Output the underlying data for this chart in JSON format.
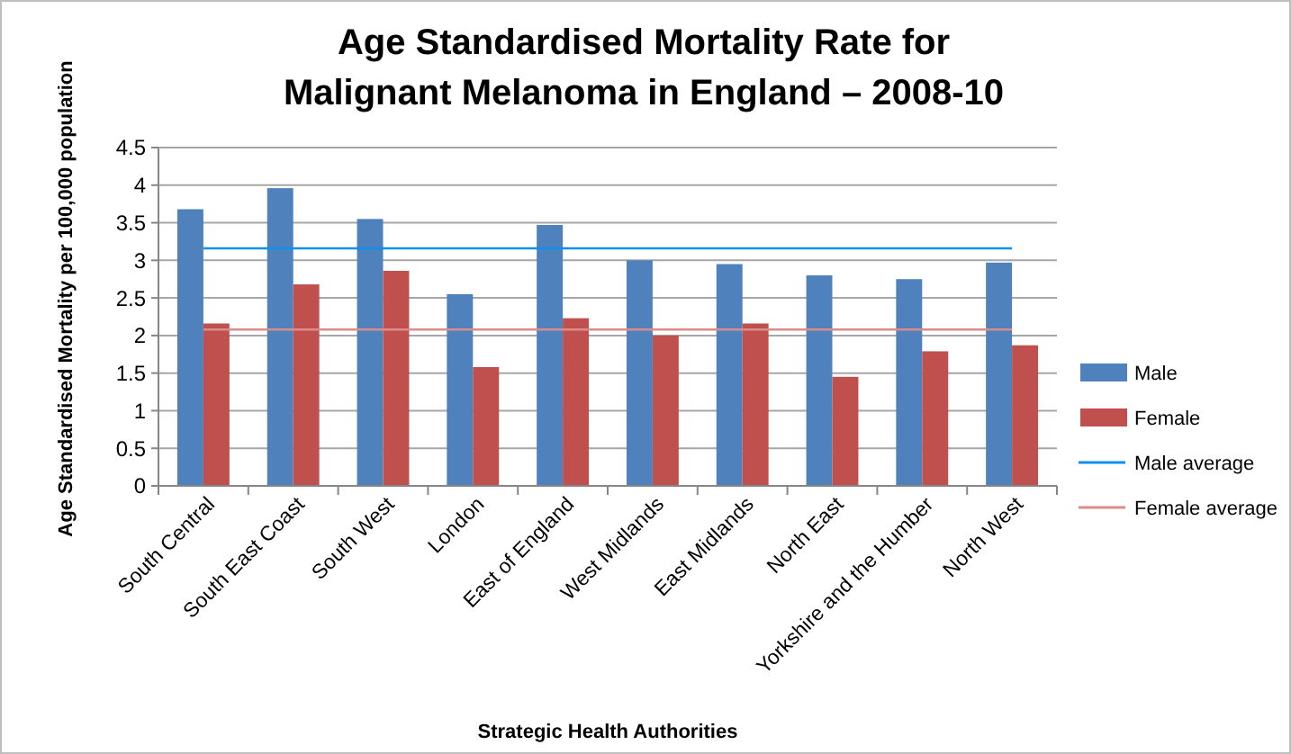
{
  "chart_data": {
    "type": "bar",
    "title": "Age Standardised Mortality Rate for Malignant Melanoma in England – 2008-10",
    "xlabel": "Strategic Health Authorities",
    "ylabel": "Age Standardised Mortality per 100,000 population",
    "categories": [
      "South Central",
      "South East Coast",
      "South West",
      "London",
      "East of England",
      "West Midlands",
      "East Midlands",
      "North East",
      "Yorkshire and the Humber",
      "North West"
    ],
    "series": [
      {
        "name": "Male",
        "color": "#4f81bd",
        "values": [
          3.68,
          3.96,
          3.55,
          2.55,
          3.47,
          3.0,
          2.95,
          2.8,
          2.75,
          2.97
        ]
      },
      {
        "name": "Female",
        "color": "#c0504d",
        "values": [
          2.16,
          2.68,
          2.86,
          1.58,
          2.23,
          2.0,
          2.16,
          1.45,
          1.79,
          1.87
        ]
      }
    ],
    "ref_lines": [
      {
        "axis": "y",
        "value": 3.16,
        "label": "Male average",
        "color": "#0f8ff0"
      },
      {
        "axis": "y",
        "value": 2.08,
        "label": "Female average",
        "color": "#d98c8a"
      }
    ],
    "ylim": [
      0,
      4.5
    ],
    "yticks": [
      0,
      0.5,
      1,
      1.5,
      2,
      2.5,
      3,
      3.5,
      4,
      4.5
    ],
    "grid": "y",
    "legend": "right"
  }
}
